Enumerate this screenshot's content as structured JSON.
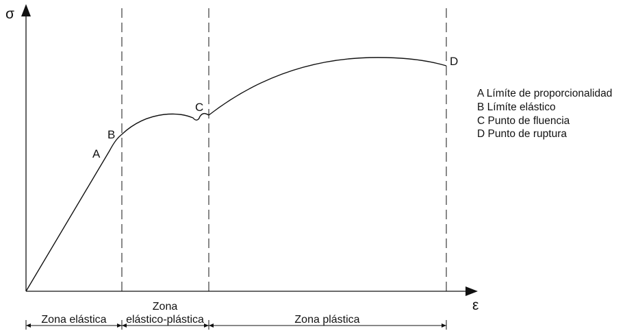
{
  "axes": {
    "y_label": "σ",
    "x_label": "ε"
  },
  "points": {
    "A": "A",
    "B": "B",
    "C": "C",
    "D": "D"
  },
  "zones": {
    "elastic": "Zona elástica",
    "elastic_plastic_line1": "Zona",
    "elastic_plastic_line2": "elástico-plástica",
    "plastic": "Zona plástica"
  },
  "legend": [
    "A Límíte de proporcionalidad",
    "B Límíte elástico",
    "C Punto de fluencia",
    "D Punto de ruptura"
  ],
  "colors": {
    "stroke": "#111111"
  }
}
